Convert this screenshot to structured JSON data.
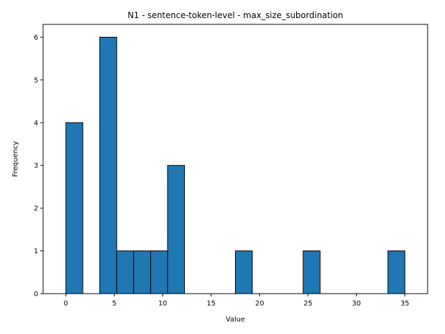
{
  "chart_data": {
    "type": "bar",
    "title": "N1 - sentence-token-level - max_size_subordination",
    "xlabel": "Value",
    "ylabel": "Frequency",
    "xlim": [
      -2.35,
      37.35
    ],
    "ylim": [
      0,
      6.3
    ],
    "xticks": [
      0,
      5,
      10,
      15,
      20,
      25,
      30,
      35
    ],
    "yticks": [
      0,
      1,
      2,
      3,
      4,
      5,
      6
    ],
    "bin_edges": [
      0,
      1.75,
      3.5,
      5.25,
      7,
      8.75,
      10.5,
      12.25,
      14,
      15.75,
      17.5,
      19.25,
      21,
      22.75,
      24.5,
      26.25,
      28,
      29.75,
      31.5,
      33.25,
      35
    ],
    "values": [
      4,
      0,
      6,
      1,
      1,
      1,
      3,
      0,
      0,
      0,
      1,
      0,
      0,
      0,
      1,
      0,
      0,
      0,
      0,
      1
    ],
    "bar_color": "#1f77b4",
    "edge_color": "#000000",
    "grid": false,
    "legend": "none"
  }
}
